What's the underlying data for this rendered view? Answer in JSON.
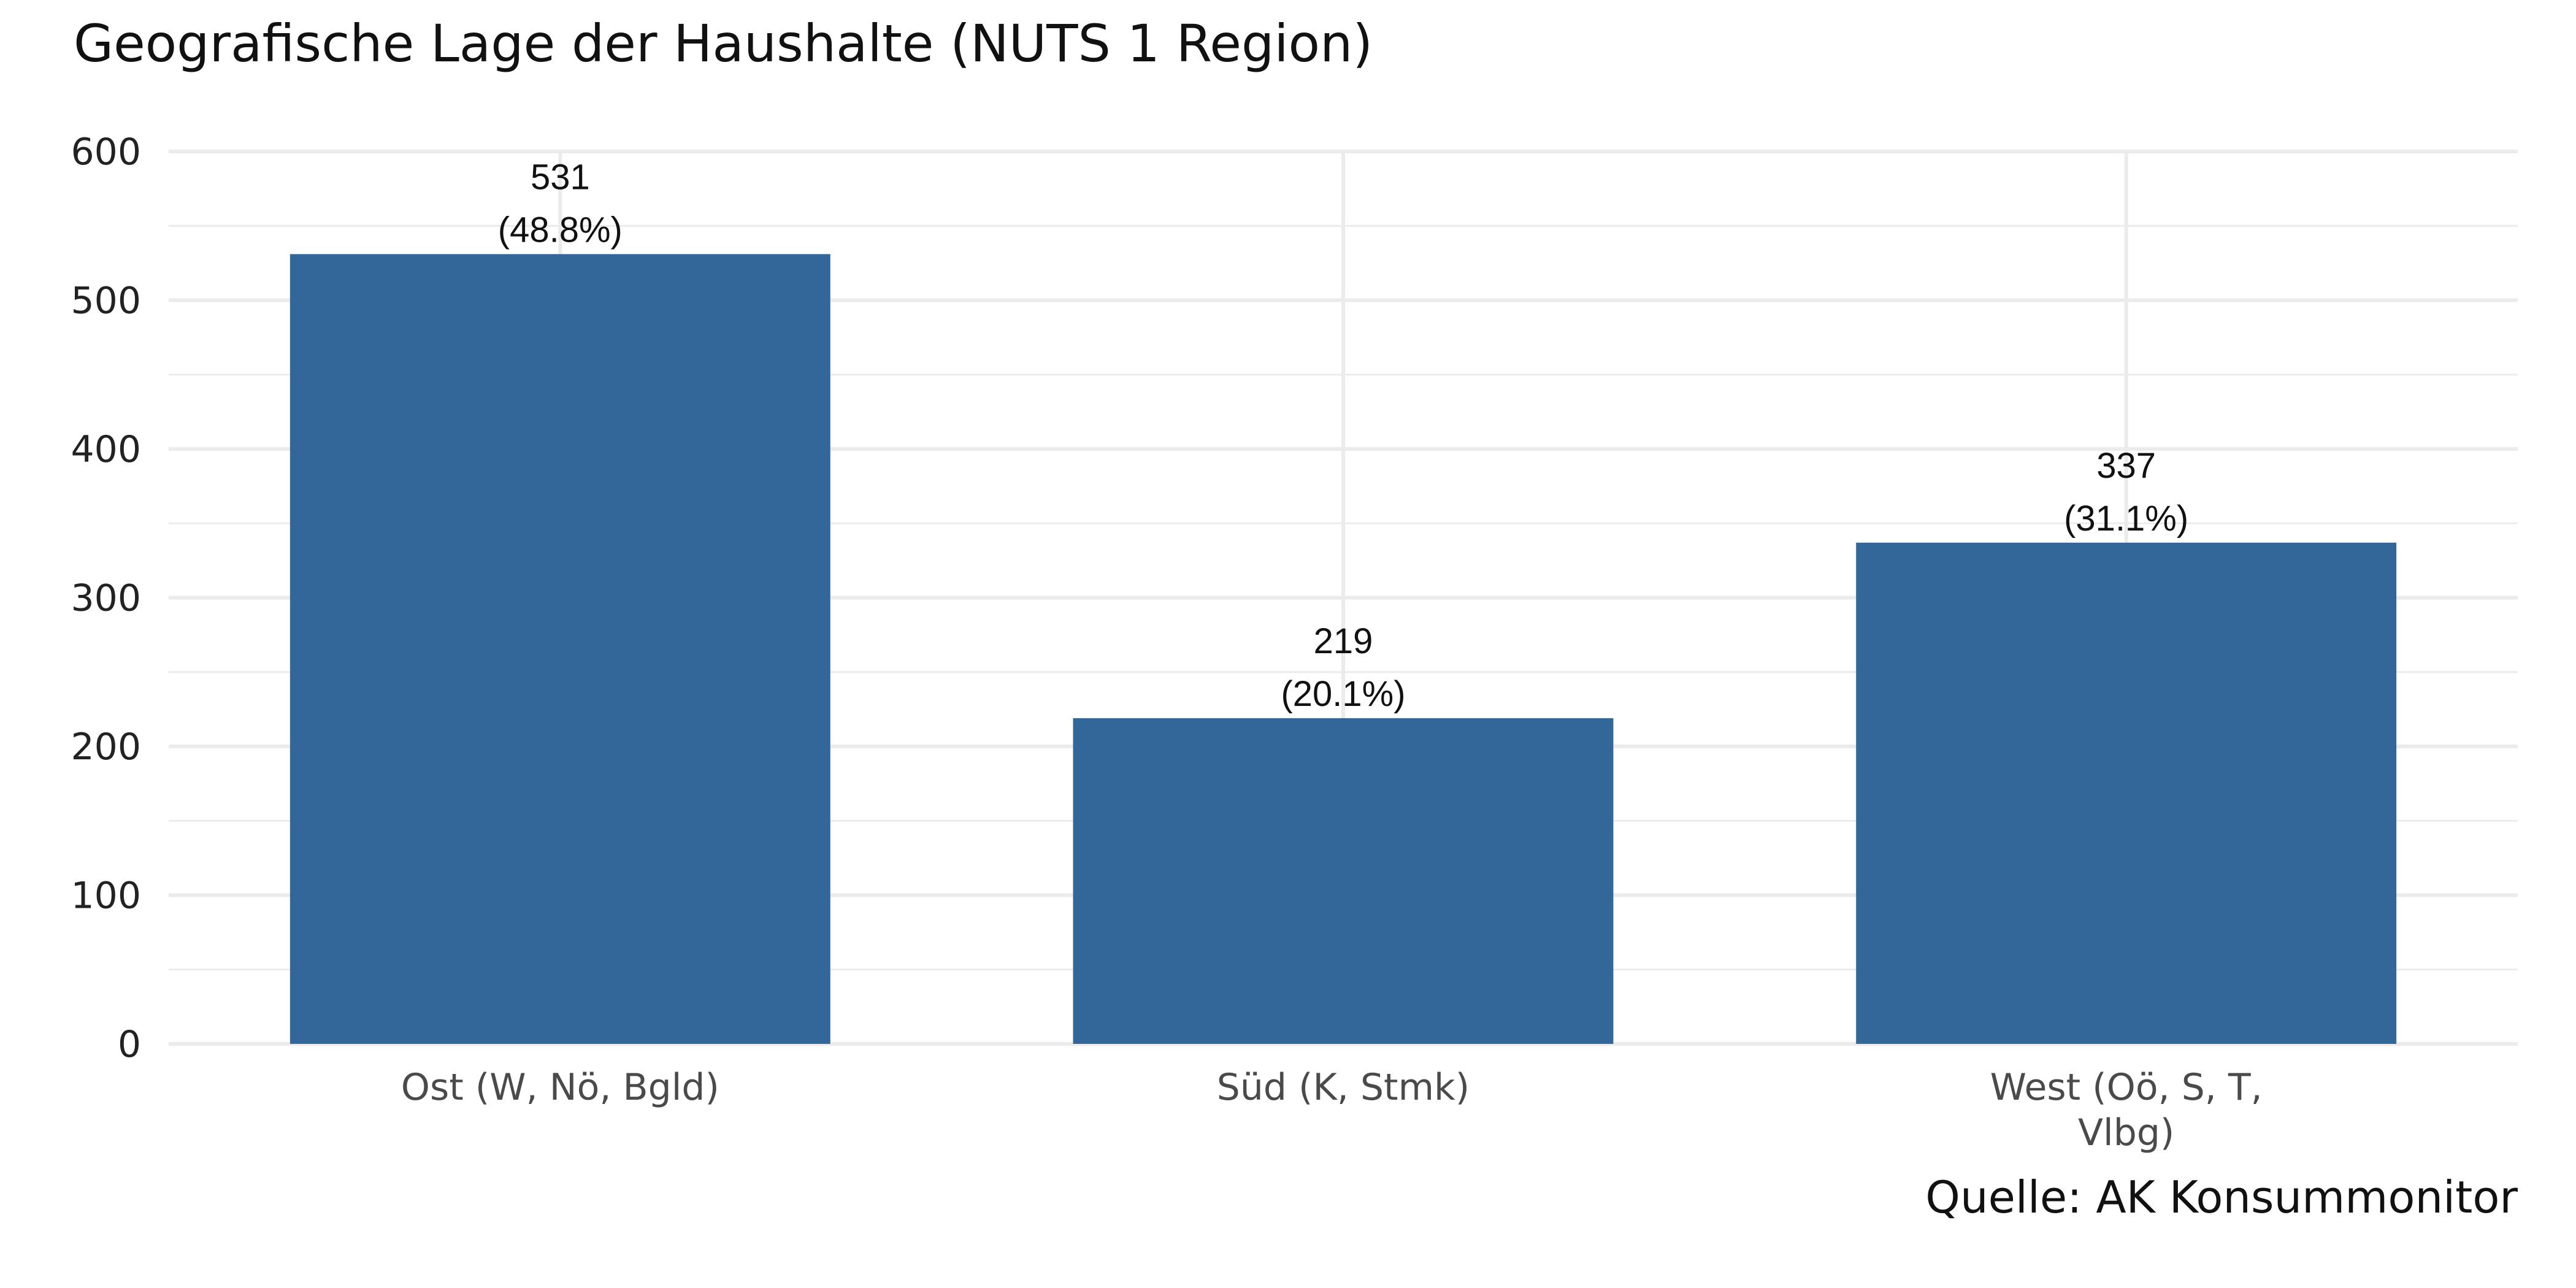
{
  "chart_data": {
    "type": "bar",
    "title": "Geografische Lage der Haushalte (NUTS 1 Region)",
    "caption": "Quelle: AK Konsummonitor",
    "xlabel": "",
    "ylabel": "",
    "ylim": [
      0,
      600
    ],
    "yticks": [
      "0",
      "100",
      "200",
      "300",
      "400",
      "500",
      "600"
    ],
    "ytick_values": [
      0,
      100,
      200,
      300,
      400,
      500,
      600
    ],
    "categories": [
      [
        "Ost (W, Nö, Bgld)"
      ],
      [
        "Süd (K, Stmk)"
      ],
      [
        "West (Oö, S, T,",
        "Vlbg)"
      ]
    ],
    "values": [
      531,
      219,
      337
    ],
    "value_labels": [
      "531",
      "219",
      "337"
    ],
    "percent_labels": [
      "(48.8%)",
      "(20.1%)",
      "(31.1%)"
    ],
    "bar_color": "#336699",
    "grid": true,
    "grid_color": "#ebebeb",
    "legend": "none"
  }
}
